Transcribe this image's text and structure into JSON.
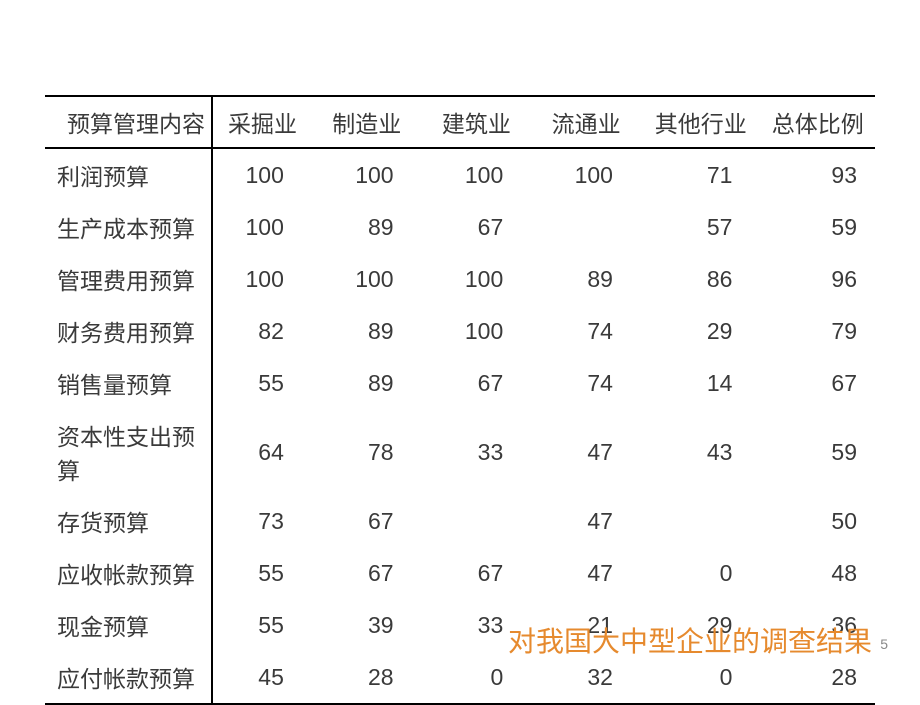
{
  "table": {
    "columns": [
      "预算管理内容",
      "采掘业",
      "制造业",
      "建筑业",
      "流通业",
      "其他行业",
      "总体比例"
    ],
    "rows": [
      [
        "利润预算",
        "100",
        "100",
        "100",
        "100",
        "71",
        "93"
      ],
      [
        "生产成本预算",
        "100",
        "89",
        "67",
        "",
        "57",
        "59"
      ],
      [
        "管理费用预算",
        "100",
        "100",
        "100",
        "89",
        "86",
        "96"
      ],
      [
        "财务费用预算",
        "82",
        "89",
        "100",
        "74",
        "29",
        "79"
      ],
      [
        "销售量预算",
        "55",
        "89",
        "67",
        "74",
        "14",
        "67"
      ],
      [
        "资本性支出预算",
        "64",
        "78",
        "33",
        "47",
        "43",
        "59"
      ],
      [
        "存货预算",
        "73",
        "67",
        "",
        "47",
        "",
        "50"
      ],
      [
        "应收帐款预算",
        "55",
        "67",
        "67",
        "47",
        "0",
        "48"
      ],
      [
        "现金预算",
        "55",
        "39",
        "33",
        "21",
        "29",
        "36"
      ],
      [
        "应付帐款预算",
        "45",
        "28",
        "0",
        "32",
        "0",
        "28"
      ]
    ],
    "header_text_color": "#3a3a3a",
    "body_text_color": "#3a3a3a",
    "border_color": "#000000",
    "background_color": "#ffffff",
    "font_size": 23
  },
  "footer": {
    "note": "对我国大中型企业的调查结果",
    "color": "#e68a2e",
    "font_size": 28
  },
  "page_number": "5"
}
